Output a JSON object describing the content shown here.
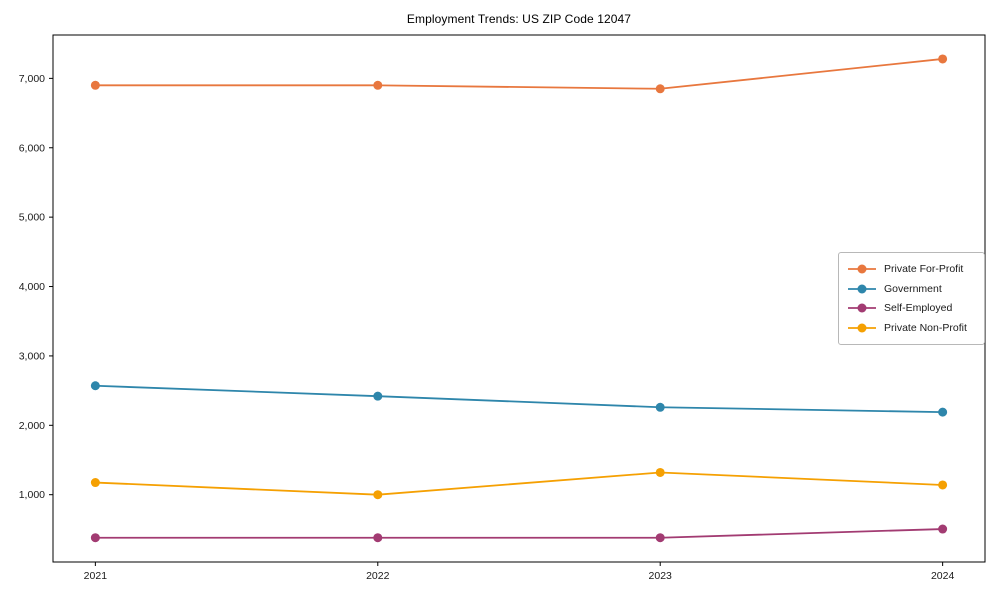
{
  "chart_data": {
    "type": "line",
    "title": "Employment Trends: US ZIP Code 12047",
    "x": [
      2021,
      2022,
      2023,
      2024
    ],
    "xtick_labels": [
      "2021",
      "2022",
      "2023",
      "2024"
    ],
    "yticks": [
      1000,
      2000,
      3000,
      4000,
      5000,
      6000,
      7000
    ],
    "ytick_labels": [
      "1,000",
      "2,000",
      "3,000",
      "4,000",
      "5,000",
      "6,000",
      "7,000"
    ],
    "xlim": [
      2020.85,
      2024.15
    ],
    "ylim": [
      30,
      7625
    ],
    "grid": false,
    "legend_position": "center-right",
    "axis_color": "#000000",
    "text_color": "#1a1a1a",
    "series": [
      {
        "name": "Private For-Profit",
        "color": "#E8773E",
        "values": [
          6900,
          6900,
          6850,
          7280
        ]
      },
      {
        "name": "Government",
        "color": "#2E86AB",
        "values": [
          2570,
          2420,
          2260,
          2190
        ]
      },
      {
        "name": "Self-Employed",
        "color": "#A23B72",
        "values": [
          380,
          380,
          380,
          505
        ]
      },
      {
        "name": "Private Non-Profit",
        "color": "#F5A002",
        "values": [
          1175,
          1000,
          1320,
          1140
        ]
      }
    ]
  }
}
